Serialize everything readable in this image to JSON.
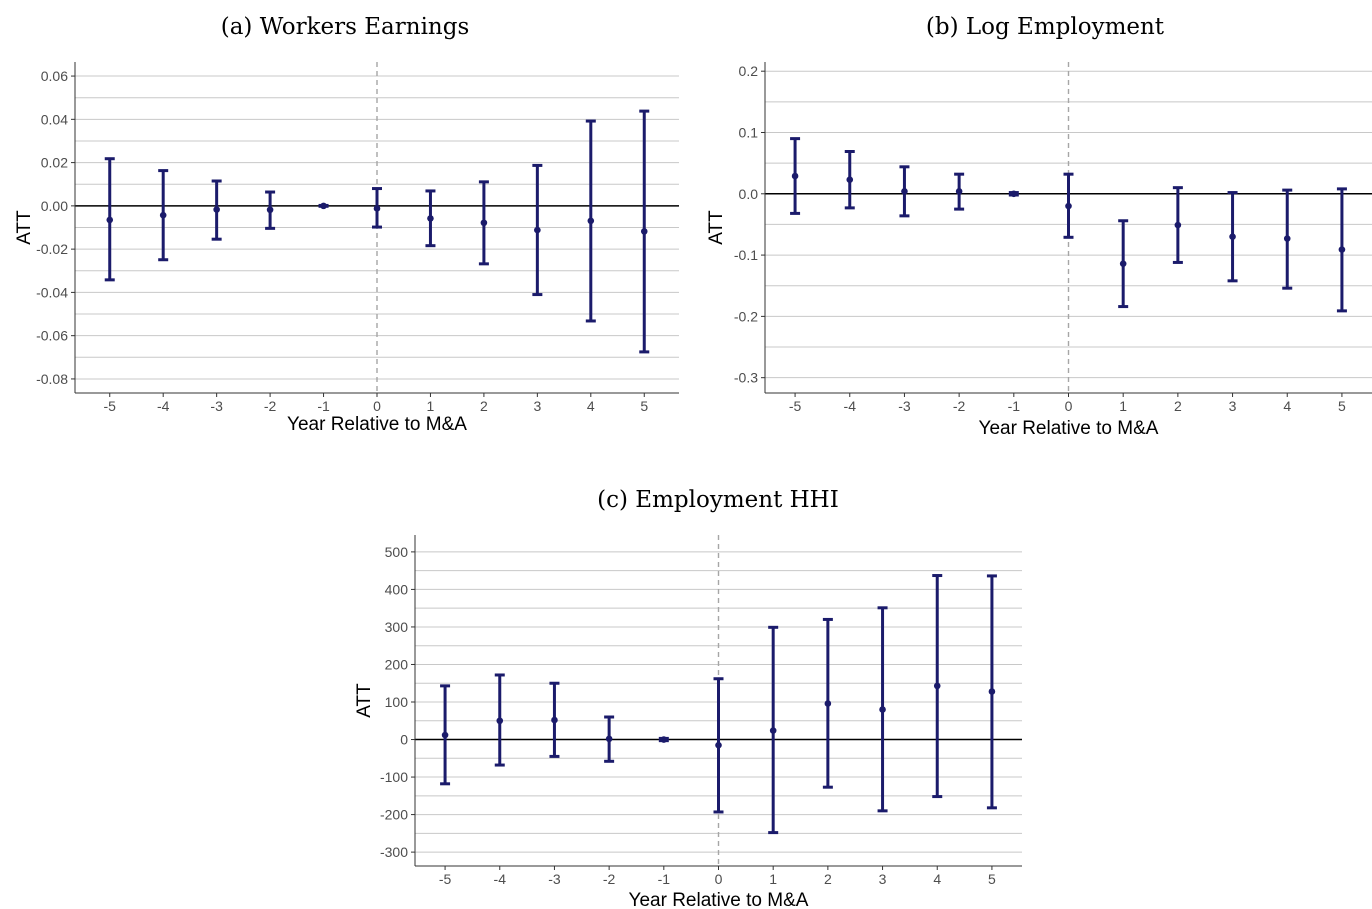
{
  "chart_data": [
    {
      "type": "scatter",
      "subtype": "event-study point estimates with confidence intervals",
      "title": "(a) Workers Earnings",
      "xlabel": "Year Relative to M&A",
      "ylabel": "ATT",
      "x": [
        -5,
        -4,
        -3,
        -2,
        -1,
        0,
        1,
        2,
        3,
        4,
        5
      ],
      "x_tick_labels": [
        "-5",
        "-4",
        "-3",
        "-2",
        "-1",
        "0",
        "1",
        "2",
        "3",
        "4",
        "5"
      ],
      "y_tick_labels": [
        "0.06",
        "0.04",
        "0.02",
        "0.00",
        "-0.02",
        "-0.04",
        "-0.06",
        "-0.08"
      ],
      "y_ticks": [
        0.06,
        0.04,
        0.02,
        0.0,
        -0.02,
        -0.04,
        -0.06,
        -0.08
      ],
      "xlim": [
        -5.65,
        5.65
      ],
      "ylim": [
        -0.0865,
        0.0665
      ],
      "estimates": [
        -0.0065,
        -0.0043,
        -0.0017,
        -0.0018,
        0.0,
        -0.0012,
        -0.0058,
        -0.0078,
        -0.0112,
        -0.0069,
        -0.0118
      ],
      "ci_lower": [
        -0.0342,
        -0.0249,
        -0.0154,
        -0.0104,
        -0.0002,
        -0.0098,
        -0.0184,
        -0.0268,
        -0.041,
        -0.0532,
        -0.0675
      ],
      "ci_upper": [
        0.0218,
        0.0163,
        0.0115,
        0.0064,
        0.0002,
        0.008,
        0.0069,
        0.0111,
        0.0187,
        0.0392,
        0.0438
      ],
      "color": "#1b1b6b",
      "reference_lines": {
        "horizontal": 0,
        "vertical_dashed": 0
      },
      "grid": "horizontal major and minor"
    },
    {
      "type": "scatter",
      "subtype": "event-study point estimates with confidence intervals",
      "title": "(b) Log Employment",
      "xlabel": "Year Relative to M&A",
      "ylabel": "ATT",
      "x": [
        -5,
        -4,
        -3,
        -2,
        -1,
        0,
        1,
        2,
        3,
        4,
        5
      ],
      "x_tick_labels": [
        "-5",
        "-4",
        "-3",
        "-2",
        "-1",
        "0",
        "1",
        "2",
        "3",
        "4",
        "5"
      ],
      "y_tick_labels": [
        "0.2",
        "0.1",
        "0.0",
        "-0.1",
        "-0.2",
        "-0.3"
      ],
      "y_ticks": [
        0.2,
        0.1,
        0.0,
        -0.1,
        -0.2,
        -0.3
      ],
      "xlim": [
        -5.55,
        5.55
      ],
      "ylim": [
        -0.325,
        0.215
      ],
      "estimates": [
        0.029,
        0.023,
        0.004,
        0.004,
        0.0,
        -0.02,
        -0.114,
        -0.051,
        -0.07,
        -0.073,
        -0.091
      ],
      "ci_lower": [
        -0.032,
        -0.023,
        -0.036,
        -0.025,
        -0.002,
        -0.071,
        -0.184,
        -0.112,
        -0.142,
        -0.154,
        -0.191
      ],
      "ci_upper": [
        0.09,
        0.069,
        0.044,
        0.032,
        0.002,
        0.032,
        -0.044,
        0.01,
        0.002,
        0.006,
        0.008
      ],
      "color": "#1b1b6b",
      "reference_lines": {
        "horizontal": 0,
        "vertical_dashed": 0
      },
      "grid": "horizontal major and minor"
    },
    {
      "type": "scatter",
      "subtype": "event-study point estimates with confidence intervals",
      "title": "(c) Employment HHI",
      "xlabel": "Year Relative to M&A",
      "ylabel": "ATT",
      "x": [
        -5,
        -4,
        -3,
        -2,
        -1,
        0,
        1,
        2,
        3,
        4,
        5
      ],
      "x_tick_labels": [
        "-5",
        "-4",
        "-3",
        "-2",
        "-1",
        "0",
        "1",
        "2",
        "3",
        "4",
        "5"
      ],
      "y_tick_labels": [
        "500",
        "400",
        "300",
        "200",
        "100",
        "0",
        "-100",
        "-200",
        "-300"
      ],
      "y_ticks": [
        500,
        400,
        300,
        200,
        100,
        0,
        -100,
        -200,
        -300
      ],
      "xlim": [
        -5.55,
        5.55
      ],
      "ylim": [
        -337,
        545
      ],
      "estimates": [
        12,
        50,
        52,
        2,
        0,
        -15,
        24,
        96,
        80,
        143,
        128
      ],
      "ci_lower": [
        -118,
        -68,
        -45,
        -58,
        -3,
        -193,
        -248,
        -127,
        -190,
        -152,
        -182
      ],
      "ci_upper": [
        143,
        172,
        150,
        60,
        3,
        162,
        299,
        320,
        351,
        437,
        436
      ],
      "color": "#1b1b6b",
      "reference_lines": {
        "horizontal": 0,
        "vertical_dashed": 0
      },
      "grid": "horizontal major and minor"
    }
  ]
}
